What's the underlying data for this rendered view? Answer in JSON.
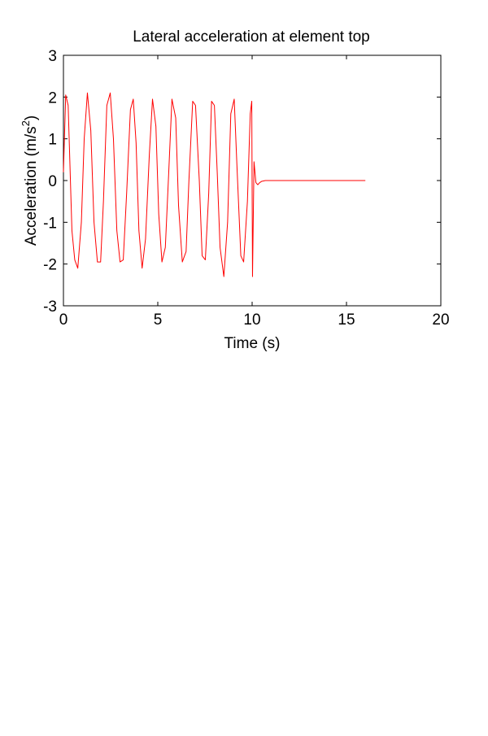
{
  "chart_data": {
    "type": "line",
    "title": "Lateral acceleration at element top",
    "xlabel": "Time (s)",
    "ylabel_main": "Acceleration (m/s",
    "ylabel_sup": "2",
    "ylabel_end": ")",
    "xlim": [
      0,
      20
    ],
    "ylim": [
      -3,
      3
    ],
    "xticks": [
      0,
      5,
      10,
      15,
      20
    ],
    "yticks": [
      -3,
      -2,
      -1,
      0,
      1,
      2,
      3
    ],
    "grid": false,
    "legend": "none",
    "series": [
      {
        "color": "#ff0000",
        "x": [
          0.0,
          0.12,
          0.25,
          0.45,
          0.6,
          0.76,
          0.95,
          1.1,
          1.27,
          1.45,
          1.62,
          1.8,
          1.97,
          2.12,
          2.3,
          2.48,
          2.65,
          2.83,
          3.0,
          3.17,
          3.35,
          3.55,
          3.7,
          3.85,
          4.0,
          4.17,
          4.35,
          4.55,
          4.72,
          4.9,
          5.05,
          5.22,
          5.4,
          5.58,
          5.75,
          5.95,
          6.1,
          6.3,
          6.5,
          6.65,
          6.85,
          7.0,
          7.2,
          7.35,
          7.52,
          7.7,
          7.85,
          8.0,
          8.15,
          8.3,
          8.5,
          8.7,
          8.87,
          9.05,
          9.2,
          9.4,
          9.55,
          9.75,
          9.9,
          9.98,
          10.02,
          10.1,
          10.2,
          10.3,
          10.4,
          10.5,
          10.7,
          11.0,
          12.0,
          13.0,
          14.0,
          15.0,
          16.0
        ],
        "y": [
          0.2,
          2.05,
          1.8,
          -1.2,
          -1.9,
          -2.1,
          -1.0,
          1.0,
          2.1,
          1.2,
          -1.0,
          -1.95,
          -1.95,
          -0.5,
          1.8,
          2.1,
          1.0,
          -1.2,
          -1.95,
          -1.9,
          -0.3,
          1.7,
          1.95,
          0.9,
          -1.2,
          -2.1,
          -1.4,
          0.6,
          1.95,
          1.3,
          -0.8,
          -1.95,
          -1.6,
          0.2,
          1.95,
          1.5,
          -0.6,
          -1.95,
          -1.7,
          0.0,
          1.9,
          1.8,
          0.0,
          -1.8,
          -1.9,
          -0.3,
          1.9,
          1.8,
          0.2,
          -1.6,
          -2.3,
          -1.0,
          1.6,
          1.95,
          0.3,
          -1.8,
          -1.95,
          -0.5,
          1.6,
          1.9,
          -2.3,
          0.45,
          -0.05,
          -0.1,
          -0.05,
          -0.02,
          0.0,
          0.0,
          0.0,
          0.0,
          0.0,
          0.0,
          0.0
        ]
      }
    ]
  }
}
